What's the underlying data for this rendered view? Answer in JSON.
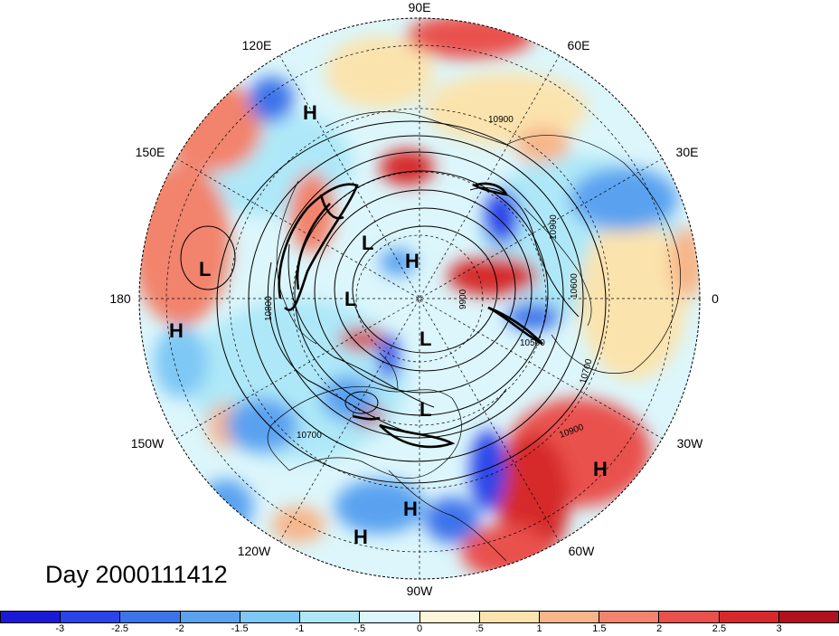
{
  "title": "Day 2000111412",
  "longitude_labels": {
    "top": "90E",
    "upper_left": "120E",
    "upper_right": "60E",
    "left_upper": "150E",
    "right_upper": "30E",
    "left": "180",
    "right": "0",
    "left_lower": "150W",
    "right_lower": "30W",
    "lower_left": "120W",
    "lower_right": "60W",
    "bottom": "90W"
  },
  "pressure_systems": [
    {
      "label": "H",
      "name": "high-120e"
    },
    {
      "label": "L",
      "name": "low-dateline"
    },
    {
      "label": "H",
      "name": "high-180"
    },
    {
      "label": "L",
      "name": "low-siberia"
    },
    {
      "label": "H",
      "name": "high-pole"
    },
    {
      "label": "L",
      "name": "low-bering"
    },
    {
      "label": "L",
      "name": "low-canada"
    },
    {
      "label": "L",
      "name": "low-great-lakes"
    },
    {
      "label": "H",
      "name": "high-atlantic"
    },
    {
      "label": "H",
      "name": "high-gulf"
    },
    {
      "label": "H",
      "name": "high-pacific"
    }
  ],
  "contour_labels": [
    "10900",
    "10900",
    "10600",
    "10500",
    "10700",
    "10900",
    "10700",
    "10800",
    "10900",
    "9900",
    "10800"
  ],
  "colorbar": {
    "colors": [
      "#1a1ad6",
      "#2b44e8",
      "#3d73ea",
      "#5aa2f0",
      "#7ec8f5",
      "#aee8f8",
      "#dcf6fb",
      "#fdf5d9",
      "#fbe3ad",
      "#f7b58a",
      "#f2836c",
      "#e9514d",
      "#d6292b",
      "#b0111c"
    ],
    "ticks": [
      "-3",
      "-2.5",
      "-2",
      "-1.5",
      "-1",
      "-.5",
      "0",
      ".5",
      "1",
      "1.5",
      "2",
      "2.5",
      "3"
    ]
  }
}
